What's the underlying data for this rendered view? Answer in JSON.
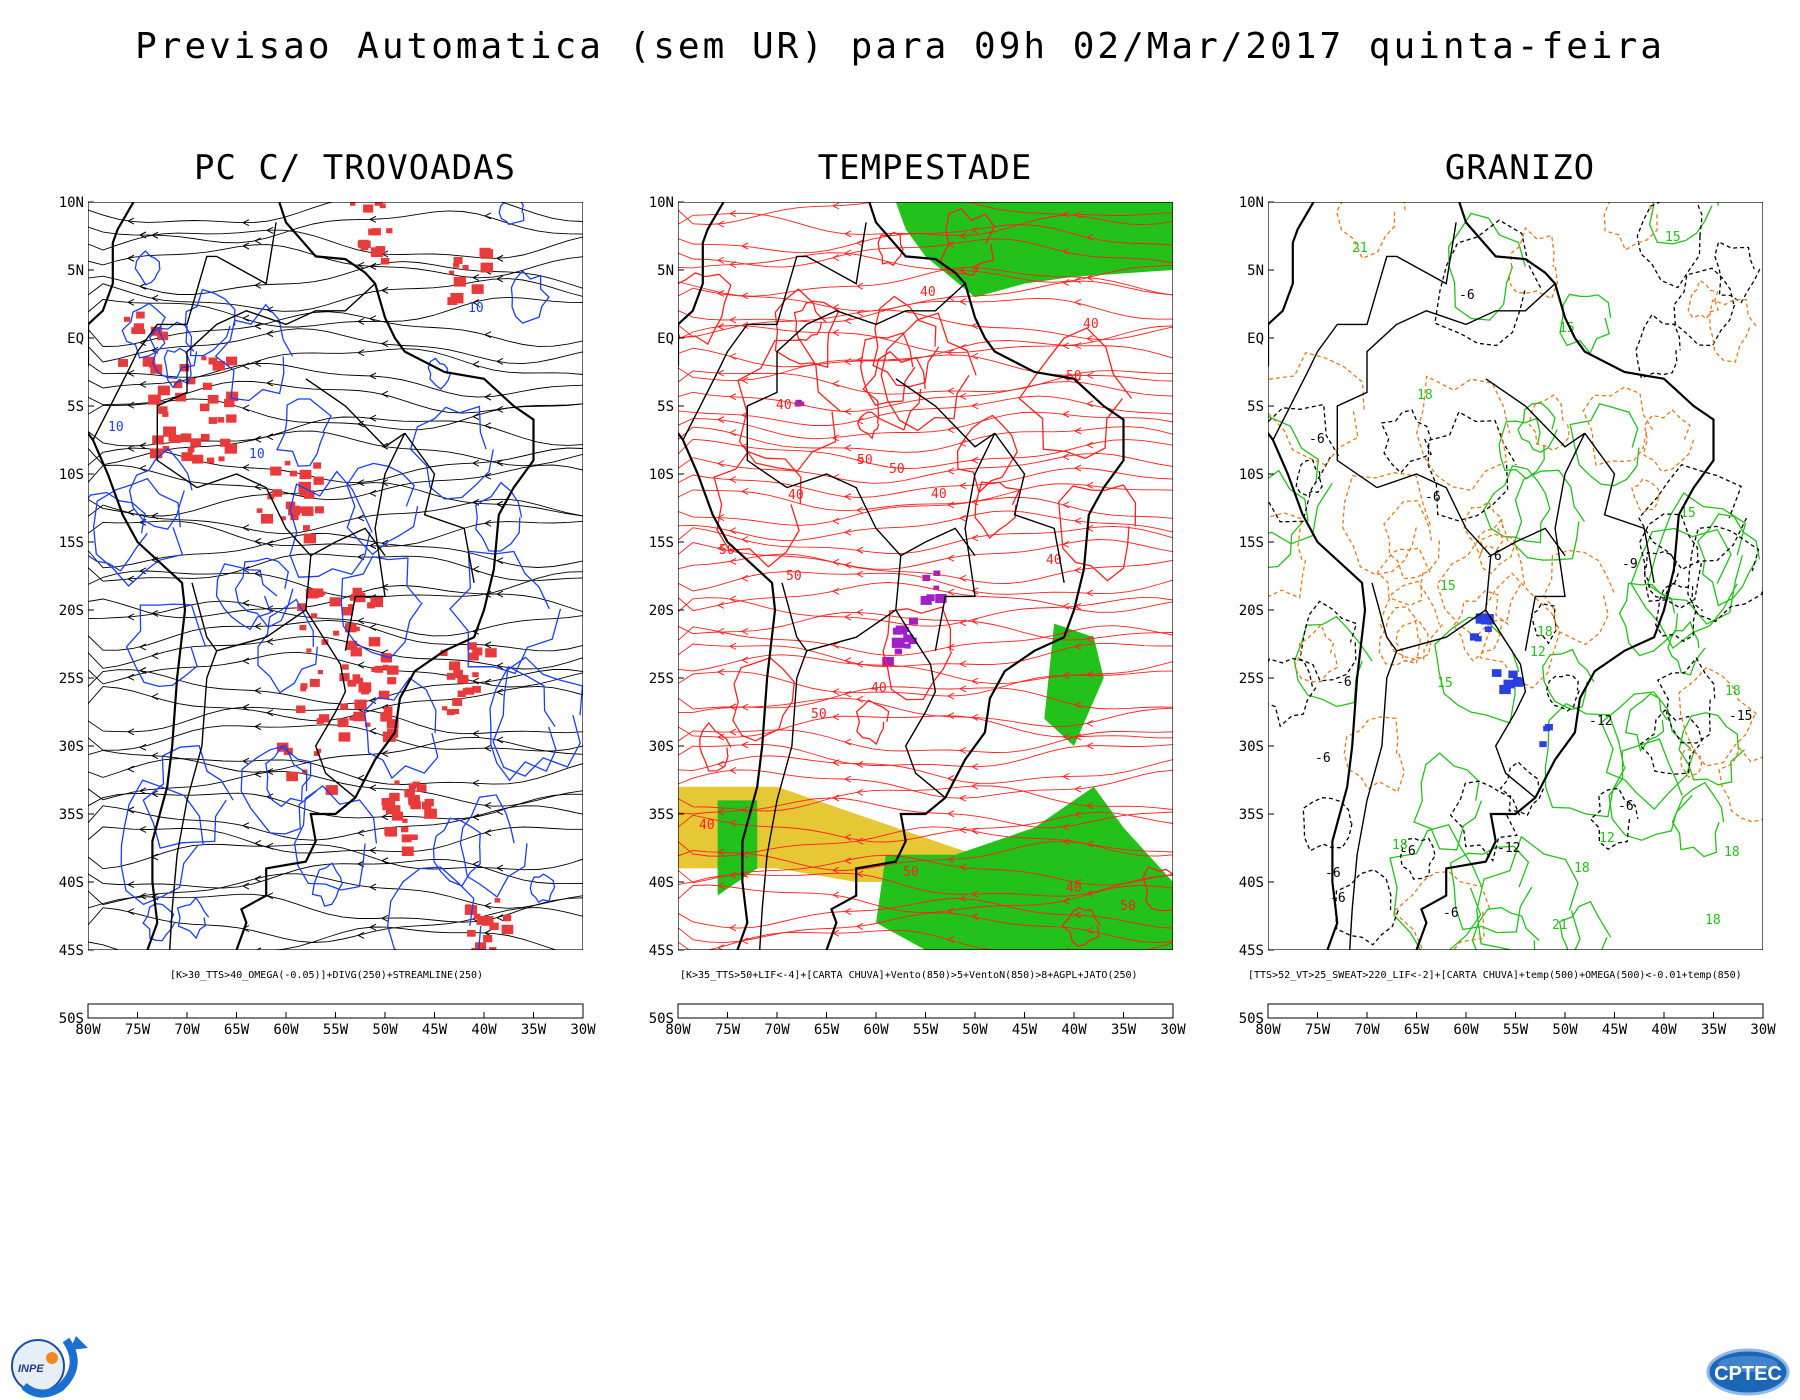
{
  "main_title": "Previsao Automatica (sem UR) para 09h 02/Mar/2017 quinta-feira",
  "panels": [
    {
      "title": "PC C/ TROVOADAS",
      "caption": "[K>30_TTS>40_OMEGA(-0.05)]+DIVG(250)+STREAMLINE(250)",
      "contour_labels": [
        "10",
        "10",
        "10"
      ],
      "colors": {
        "background": "#ffffff",
        "streamlines": "#000000",
        "fill": "#e8393b",
        "contours": "#1a3dff"
      }
    },
    {
      "title": "TEMPESTADE",
      "caption": "[K>35_TTS>50+LIF<-4]+[CARTA CHUVA]+Vento(850)>5+VentoN(850)>8+AGPL+JATO(250)",
      "contour_labels": [
        "40",
        "50",
        "50",
        "50",
        "50",
        "40",
        "40",
        "50",
        "50",
        "40",
        "40",
        "50",
        "40",
        "40",
        "50",
        "40",
        "40"
      ],
      "colors": {
        "background": "#ffffff",
        "streamlines": "#ff2020",
        "green": "#22c21a",
        "yellow": "#e6c734",
        "purple": "#a020c8"
      }
    },
    {
      "title": "GRANIZO",
      "caption": "[TTS>52_VT>25_SWEAT>220_LIF<-2]+[CARTA CHUVA]+temp(500)+OMEGA(500)<-0.01+temp(850)",
      "contour_labels": [
        "-6",
        "-6",
        "-6",
        "-6",
        "-6",
        "-6",
        "-6",
        "-6",
        "-6",
        "-6",
        "-6",
        "-9",
        "-12",
        "-12",
        "-15",
        "12",
        "12",
        "15",
        "15",
        "15",
        "18",
        "18",
        "18",
        "18",
        "18",
        "18",
        "21",
        "21",
        "15",
        "15",
        "18"
      ],
      "colors": {
        "background": "#ffffff",
        "temp500": "#000000",
        "temp850": "#22c21a",
        "omega": "#e87a1a",
        "fill": "#2a3fe0"
      }
    }
  ],
  "lat_labels": [
    "10N",
    "5N",
    "EQ",
    "5S",
    "10S",
    "15S",
    "20S",
    "25S",
    "30S",
    "35S",
    "40S",
    "45S",
    "50S"
  ],
  "lon_labels": [
    "80W",
    "75W",
    "70W",
    "65W",
    "60W",
    "55W",
    "50W",
    "45W",
    "40W",
    "35W",
    "30W"
  ],
  "logos": {
    "left": "INPE",
    "right": "CPTEC"
  }
}
